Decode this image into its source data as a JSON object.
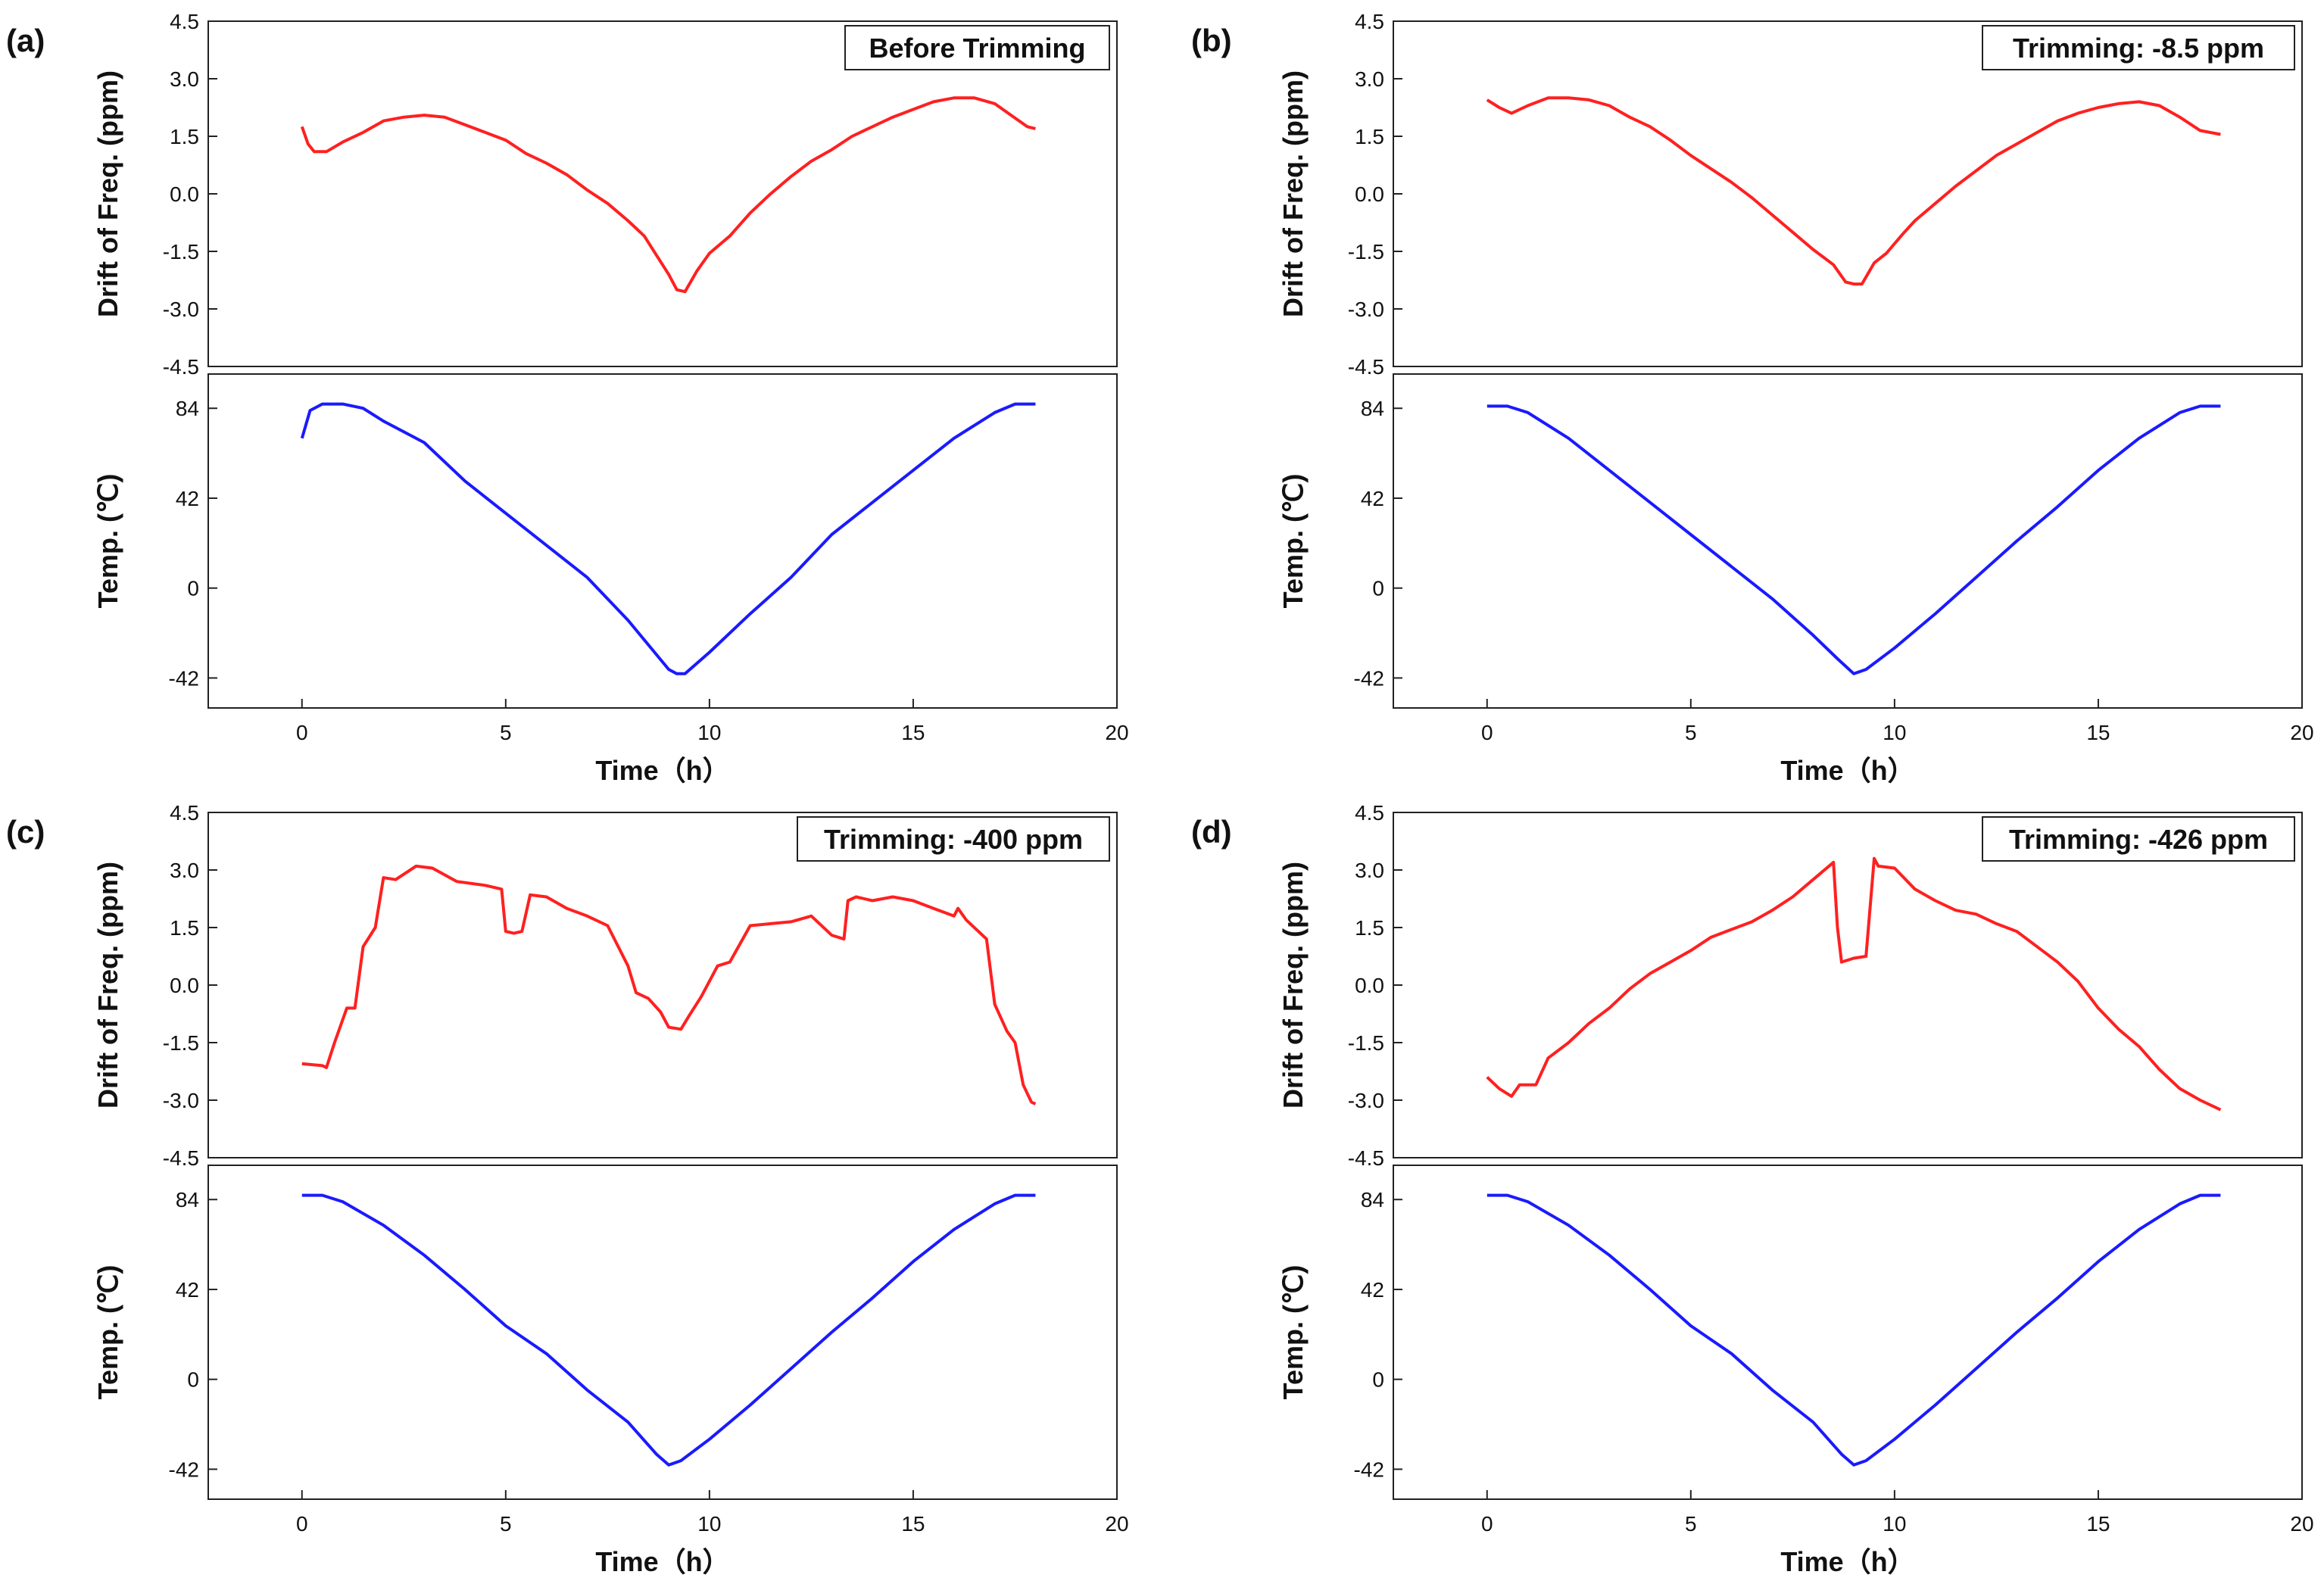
{
  "figure": {
    "shared": {
      "xlabel": "Time（h）",
      "x_ticks": [
        0,
        5,
        10,
        15,
        20
      ],
      "xlim": [
        -2.3,
        20
      ],
      "freq_ylabel": "Drift of Freq. (ppm)",
      "freq_ticks": [
        "4.5",
        "3.0",
        "1.5",
        "0.0",
        "-1.5",
        "-3.0",
        "-4.5"
      ],
      "freq_ylim": [
        -4.5,
        4.5
      ],
      "temp_ylabel": "Temp. (℃)",
      "temp_ticks": [
        "84",
        "42",
        "0",
        "-42"
      ],
      "temp_ylim": [
        -56,
        100
      ],
      "freq_color": "#ff2020",
      "temp_color": "#1a1aff"
    }
  },
  "chart_data": [
    {
      "type": "line",
      "panel_label": "(a)",
      "title": "Before Trimming",
      "xlabel": "Time（h）",
      "series": [
        {
          "name": "Drift of Freq. (ppm)",
          "x": [
            0,
            0.15,
            0.3,
            0.6,
            1.0,
            1.5,
            2.0,
            2.5,
            3.0,
            3.5,
            4.0,
            4.5,
            5.0,
            5.5,
            6.0,
            6.5,
            7.0,
            7.5,
            8.0,
            8.4,
            8.7,
            9.0,
            9.2,
            9.4,
            9.7,
            10.0,
            10.5,
            11.0,
            11.5,
            12.0,
            12.5,
            13.0,
            13.5,
            14.0,
            14.5,
            15.0,
            15.5,
            16.0,
            16.5,
            17.0,
            17.4,
            17.8,
            18.0
          ],
          "y": [
            1.75,
            1.3,
            1.1,
            1.1,
            1.35,
            1.6,
            1.9,
            2.0,
            2.05,
            2.0,
            1.8,
            1.6,
            1.4,
            1.05,
            0.8,
            0.5,
            0.1,
            -0.25,
            -0.7,
            -1.1,
            -1.6,
            -2.1,
            -2.5,
            -2.55,
            -2.0,
            -1.55,
            -1.1,
            -0.5,
            0.0,
            0.45,
            0.85,
            1.15,
            1.5,
            1.75,
            2.0,
            2.2,
            2.4,
            2.5,
            2.5,
            2.35,
            2.05,
            1.75,
            1.7
          ],
          "color": "#ff2020"
        },
        {
          "name": "Temp. (℃)",
          "x": [
            0,
            0.2,
            0.5,
            1.0,
            1.5,
            2.0,
            3.0,
            4.0,
            5.0,
            6.0,
            7.0,
            8.0,
            9.0,
            9.2,
            9.4,
            10.0,
            11.0,
            12.0,
            13.0,
            14.0,
            15.0,
            16.0,
            17.0,
            17.5,
            18.0
          ],
          "y": [
            70,
            83,
            86,
            86,
            84,
            78,
            68,
            50,
            35,
            20,
            5,
            -15,
            -38,
            -40,
            -40,
            -30,
            -12,
            5,
            25,
            40,
            55,
            70,
            82,
            86,
            86
          ],
          "color": "#1a1aff"
        }
      ],
      "freq_ylim": [
        -4.5,
        4.5
      ],
      "temp_ylim": [
        -56,
        100
      ],
      "xlim": [
        -2.3,
        20
      ]
    },
    {
      "type": "line",
      "panel_label": "(b)",
      "title": "Trimming: -8.5 ppm",
      "xlabel": "Time（h）",
      "series": [
        {
          "name": "Drift of Freq. (ppm)",
          "x": [
            0,
            0.3,
            0.6,
            1.0,
            1.5,
            2.0,
            2.5,
            3.0,
            3.5,
            4.0,
            4.5,
            5.0,
            5.5,
            6.0,
            6.5,
            7.0,
            7.5,
            8.0,
            8.5,
            8.8,
            9.0,
            9.2,
            9.5,
            9.8,
            10.2,
            10.5,
            11.0,
            11.5,
            12.0,
            12.5,
            13.0,
            13.5,
            14.0,
            14.5,
            15.0,
            15.5,
            16.0,
            16.5,
            17.0,
            17.5,
            18.0
          ],
          "y": [
            2.45,
            2.25,
            2.1,
            2.3,
            2.5,
            2.5,
            2.45,
            2.3,
            2.0,
            1.75,
            1.4,
            1.0,
            0.65,
            0.3,
            -0.1,
            -0.55,
            -1.0,
            -1.45,
            -1.85,
            -2.3,
            -2.35,
            -2.35,
            -1.8,
            -1.55,
            -1.05,
            -0.7,
            -0.25,
            0.2,
            0.6,
            1.0,
            1.3,
            1.6,
            1.9,
            2.1,
            2.25,
            2.35,
            2.4,
            2.3,
            2.0,
            1.65,
            1.55
          ],
          "color": "#ff2020"
        },
        {
          "name": "Temp. (℃)",
          "x": [
            0,
            0.5,
            1.0,
            2.0,
            3.0,
            4.0,
            5.0,
            6.0,
            7.0,
            8.0,
            8.6,
            9.0,
            9.3,
            10.0,
            11.0,
            12.0,
            13.0,
            14.0,
            15.0,
            16.0,
            17.0,
            17.5,
            18.0
          ],
          "y": [
            85,
            85,
            82,
            70,
            55,
            40,
            25,
            10,
            -5,
            -22,
            -33,
            -40,
            -38,
            -28,
            -12,
            5,
            22,
            38,
            55,
            70,
            82,
            85,
            85
          ],
          "color": "#1a1aff"
        }
      ],
      "freq_ylim": [
        -4.5,
        4.5
      ],
      "temp_ylim": [
        -56,
        100
      ],
      "xlim": [
        -2.3,
        20
      ]
    },
    {
      "type": "line",
      "panel_label": "(c)",
      "title": "Trimming: -400 ppm",
      "xlabel": "Time（h）",
      "series": [
        {
          "name": "Drift of Freq. (ppm)",
          "x": [
            0,
            0.5,
            0.6,
            0.8,
            1.1,
            1.3,
            1.5,
            1.8,
            2.0,
            2.3,
            2.8,
            3.2,
            3.8,
            4.5,
            4.9,
            5.0,
            5.2,
            5.4,
            5.6,
            6.0,
            6.5,
            7.0,
            7.5,
            8.0,
            8.2,
            8.5,
            8.8,
            9.0,
            9.3,
            9.5,
            9.8,
            10.2,
            10.5,
            11.0,
            11.5,
            12.0,
            12.5,
            13.0,
            13.3,
            13.4,
            13.6,
            14.0,
            14.5,
            15.0,
            15.5,
            16.0,
            16.1,
            16.3,
            16.8,
            17.0,
            17.3,
            17.5,
            17.7,
            17.9,
            18.0
          ],
          "y": [
            -2.05,
            -2.1,
            -2.15,
            -1.5,
            -0.6,
            -0.6,
            1.0,
            1.5,
            2.8,
            2.75,
            3.1,
            3.05,
            2.7,
            2.6,
            2.5,
            1.4,
            1.35,
            1.4,
            2.35,
            2.3,
            2.0,
            1.8,
            1.55,
            0.5,
            -0.2,
            -0.35,
            -0.7,
            -1.1,
            -1.15,
            -0.8,
            -0.3,
            0.5,
            0.6,
            1.55,
            1.6,
            1.65,
            1.8,
            1.3,
            1.2,
            2.2,
            2.3,
            2.2,
            2.3,
            2.2,
            2.0,
            1.8,
            2.0,
            1.7,
            1.2,
            -0.5,
            -1.2,
            -1.5,
            -2.6,
            -3.05,
            -3.1
          ],
          "color": "#ff2020"
        },
        {
          "name": "Temp. (℃)",
          "x": [
            0,
            0.5,
            1.0,
            2.0,
            3.0,
            4.0,
            5.0,
            6.0,
            7.0,
            8.0,
            8.7,
            9.0,
            9.3,
            10.0,
            11.0,
            12.0,
            13.0,
            14.0,
            15.0,
            16.0,
            17.0,
            17.5,
            18.0
          ],
          "y": [
            86,
            86,
            83,
            72,
            58,
            42,
            25,
            12,
            -5,
            -20,
            -35,
            -40,
            -38,
            -28,
            -12,
            5,
            22,
            38,
            55,
            70,
            82,
            86,
            86
          ],
          "color": "#1a1aff"
        }
      ],
      "freq_ylim": [
        -4.5,
        4.5
      ],
      "temp_ylim": [
        -56,
        100
      ],
      "xlim": [
        -2.3,
        20
      ]
    },
    {
      "type": "line",
      "panel_label": "(d)",
      "title": "Trimming: -426 ppm",
      "xlabel": "Time（h）",
      "series": [
        {
          "name": "Drift of Freq. (ppm)",
          "x": [
            0,
            0.3,
            0.6,
            0.8,
            1.2,
            1.5,
            2.0,
            2.5,
            3.0,
            3.5,
            4.0,
            4.5,
            5.0,
            5.5,
            6.0,
            6.5,
            7.0,
            7.5,
            8.0,
            8.5,
            8.6,
            8.7,
            9.0,
            9.3,
            9.5,
            9.6,
            10.0,
            10.5,
            11.0,
            11.5,
            12.0,
            12.5,
            13.0,
            13.5,
            14.0,
            14.5,
            15.0,
            15.5,
            16.0,
            16.5,
            17.0,
            17.5,
            18.0
          ],
          "y": [
            -2.4,
            -2.7,
            -2.9,
            -2.6,
            -2.6,
            -1.9,
            -1.5,
            -1.0,
            -0.6,
            -0.1,
            0.3,
            0.6,
            0.9,
            1.25,
            1.45,
            1.65,
            1.95,
            2.3,
            2.75,
            3.2,
            1.5,
            0.6,
            0.7,
            0.75,
            3.3,
            3.1,
            3.05,
            2.5,
            2.2,
            1.95,
            1.85,
            1.6,
            1.4,
            1.0,
            0.6,
            0.1,
            -0.6,
            -1.15,
            -1.6,
            -2.2,
            -2.7,
            -3.0,
            -3.25
          ],
          "color": "#ff2020"
        },
        {
          "name": "Temp. (℃)",
          "x": [
            0,
            0.5,
            1.0,
            2.0,
            3.0,
            4.0,
            5.0,
            6.0,
            7.0,
            8.0,
            8.7,
            9.0,
            9.3,
            10.0,
            11.0,
            12.0,
            13.0,
            14.0,
            15.0,
            16.0,
            17.0,
            17.5,
            18.0
          ],
          "y": [
            86,
            86,
            83,
            72,
            58,
            42,
            25,
            12,
            -5,
            -20,
            -35,
            -40,
            -38,
            -28,
            -12,
            5,
            22,
            38,
            55,
            70,
            82,
            86,
            86
          ],
          "color": "#1a1aff"
        }
      ],
      "freq_ylim": [
        -4.5,
        4.5
      ],
      "temp_ylim": [
        -56,
        100
      ],
      "xlim": [
        -2.3,
        20
      ]
    }
  ]
}
